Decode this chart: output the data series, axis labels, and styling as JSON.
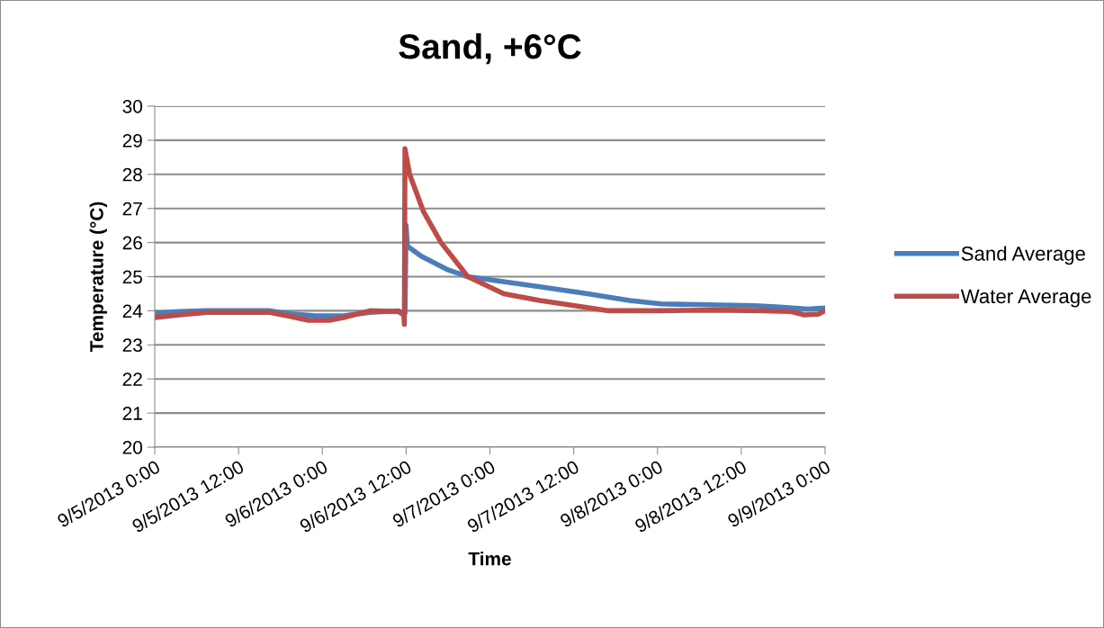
{
  "chart_data": {
    "type": "line",
    "title": "Sand, +6°C",
    "xlabel": "Time",
    "ylabel": "Temperature (°C)",
    "series": [
      {
        "name": "Sand Average",
        "color": "#4a7ebb",
        "x": [
          "2013-09-05T00:00",
          "2013-09-05T03:30",
          "2013-09-05T07:30",
          "2013-09-05T16:30",
          "2013-09-05T19:00",
          "2013-09-05T23:00",
          "2013-09-06T03:00",
          "2013-09-06T06:50",
          "2013-09-06T10:50",
          "2013-09-06T11:50",
          "2013-09-06T12:00",
          "2013-09-06T12:10",
          "2013-09-06T14:10",
          "2013-09-06T18:00",
          "2013-09-06T20:50",
          "2013-09-07T07:10",
          "2013-09-07T14:00",
          "2013-09-07T20:00",
          "2013-09-08T00:30",
          "2013-09-08T14:00",
          "2013-09-08T18:00",
          "2013-09-08T21:30",
          "2013-09-09T00:00"
        ],
        "values": [
          23.93,
          23.98,
          24.0,
          24.0,
          23.92,
          23.85,
          23.85,
          23.95,
          24.0,
          23.93,
          26.5,
          25.9,
          25.6,
          25.2,
          25.0,
          24.7,
          24.5,
          24.3,
          24.2,
          24.15,
          24.1,
          24.05,
          24.08
        ]
      },
      {
        "name": "Water Average",
        "color": "#be4b48",
        "x": [
          "2013-09-05T00:00",
          "2013-09-05T03:30",
          "2013-09-05T07:30",
          "2013-09-05T16:30",
          "2013-09-05T19:00",
          "2013-09-05T22:00",
          "2013-09-06T01:00",
          "2013-09-06T03:00",
          "2013-09-06T06:50",
          "2013-09-06T10:50",
          "2013-09-06T11:40",
          "2013-09-06T11:45",
          "2013-09-06T11:50",
          "2013-09-06T12:30",
          "2013-09-06T14:30",
          "2013-09-06T17:00",
          "2013-09-06T20:50",
          "2013-09-07T02:00",
          "2013-09-07T07:10",
          "2013-09-07T13:40",
          "2013-09-07T17:00",
          "2013-09-08T00:00",
          "2013-09-08T08:00",
          "2013-09-08T15:00",
          "2013-09-08T19:00",
          "2013-09-08T21:00",
          "2013-09-08T23:00",
          "2013-09-09T00:00"
        ],
        "values": [
          23.8,
          23.88,
          23.95,
          23.95,
          23.85,
          23.72,
          23.72,
          23.8,
          24.0,
          23.98,
          23.88,
          23.6,
          28.75,
          28.0,
          26.9,
          26.0,
          25.0,
          24.5,
          24.3,
          24.1,
          24.0,
          24.0,
          24.02,
          24.0,
          23.98,
          23.88,
          23.9,
          24.0
        ]
      }
    ],
    "xlim": [
      "2013-09-05T00:00",
      "2013-09-09T00:00"
    ],
    "xticks": [
      {
        "value": "2013-09-05T00:00",
        "label": "9/5/2013 0:00"
      },
      {
        "value": "2013-09-05T12:00",
        "label": "9/5/2013 12:00"
      },
      {
        "value": "2013-09-06T00:00",
        "label": "9/6/2013 0:00"
      },
      {
        "value": "2013-09-06T12:00",
        "label": "9/6/2013 12:00"
      },
      {
        "value": "2013-09-07T00:00",
        "label": "9/7/2013 0:00"
      },
      {
        "value": "2013-09-07T12:00",
        "label": "9/7/2013 12:00"
      },
      {
        "value": "2013-09-08T00:00",
        "label": "9/8/2013 0:00"
      },
      {
        "value": "2013-09-08T12:00",
        "label": "9/8/2013 12:00"
      },
      {
        "value": "2013-09-09T00:00",
        "label": "9/9/2013 0:00"
      }
    ],
    "ylim": [
      20,
      30
    ],
    "yticks": [
      20,
      21,
      22,
      23,
      24,
      25,
      26,
      27,
      28,
      29,
      30
    ],
    "grid": "y",
    "legend": "right",
    "marker": "none",
    "line_style": "solid"
  }
}
